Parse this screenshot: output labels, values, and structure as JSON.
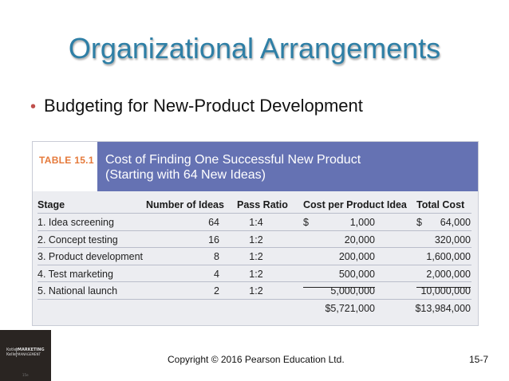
{
  "slide": {
    "title": "Organizational Arrangements",
    "bullet": "Budgeting for New-Product Development",
    "bullet_marker": "•"
  },
  "table": {
    "label": "TABLE 15.1",
    "caption_line1": "Cost of Finding One Successful New Product",
    "caption_line2": "(Starting with 64 New Ideas)",
    "headers": {
      "stage": "Stage",
      "ideas": "Number of Ideas",
      "pass": "Pass Ratio",
      "cost": "Cost per Product Idea",
      "total": "Total Cost"
    },
    "rows": [
      {
        "stage": "1. Idea screening",
        "ideas": "64",
        "pass": "1:4",
        "cost_sign": "$",
        "cost": "1,000",
        "total_sign": "$",
        "total": "64,000"
      },
      {
        "stage": "2. Concept testing",
        "ideas": "16",
        "pass": "1:2",
        "cost_sign": "",
        "cost": "20,000",
        "total_sign": "",
        "total": "320,000"
      },
      {
        "stage": "3. Product development",
        "ideas": "8",
        "pass": "1:2",
        "cost_sign": "",
        "cost": "200,000",
        "total_sign": "",
        "total": "1,600,000"
      },
      {
        "stage": "4. Test marketing",
        "ideas": "4",
        "pass": "1:2",
        "cost_sign": "",
        "cost": "500,000",
        "total_sign": "",
        "total": "2,000,000"
      },
      {
        "stage": "5. National launch",
        "ideas": "2",
        "pass": "1:2",
        "cost_sign": "",
        "cost": "5,000,000",
        "total_sign": "",
        "total": "10,000,000"
      }
    ],
    "totals": {
      "cost": "$5,721,000",
      "total": "$13,984,000"
    }
  },
  "logo": {
    "authors_line1": "Kotler",
    "authors_line2": "Keller",
    "brand_line1": "MARKETING",
    "brand_line2": "MANAGEMENT",
    "edition": "15e"
  },
  "footer": {
    "copyright": "Copyright © 2016 Pearson Education Ltd.",
    "page": "15-7"
  },
  "colors": {
    "title": "#2e7fa6",
    "bullet_marker": "#c0504d",
    "table_label": "#e5793a",
    "caption_band": "#6572b3",
    "table_body": "#ecedf1"
  }
}
